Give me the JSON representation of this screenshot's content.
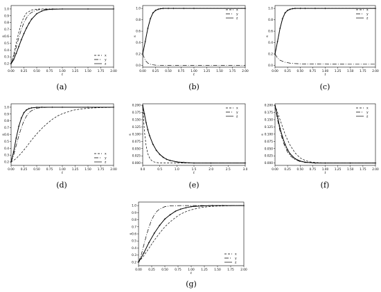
{
  "chart_data": [
    {
      "panel": "(a)",
      "type": "line",
      "xlabel": "t",
      "ylabel": "s",
      "xlim": [
        0,
        2.0
      ],
      "ylim": [
        0.15,
        1.05
      ],
      "xticks": [
        "0.00",
        "0.25",
        "0.50",
        "0.75",
        "1.00",
        "1.25",
        "1.50",
        "1.75",
        "2.00"
      ],
      "yticks": [
        "0.2",
        "0.3",
        "0.4",
        "0.5",
        "0.6",
        "0.7",
        "0.8",
        "0.9",
        "1.0"
      ],
      "legend": "bottom-right",
      "series": [
        {
          "name": "x",
          "style": "dashed",
          "x": [
            0,
            0.05,
            0.1,
            0.15,
            0.2,
            0.25,
            0.3,
            0.4,
            0.5,
            0.6,
            0.8,
            1.0,
            1.5,
            2.0
          ],
          "y": [
            0.2,
            0.33,
            0.5,
            0.66,
            0.79,
            0.88,
            0.94,
            0.985,
            0.997,
            1.0,
            1.0,
            1.0,
            1.0,
            1.0
          ]
        },
        {
          "name": "y",
          "style": "dashdot",
          "x": [
            0,
            0.05,
            0.1,
            0.15,
            0.2,
            0.25,
            0.3,
            0.35,
            0.4,
            0.5,
            0.6,
            0.8,
            1.0,
            1.5,
            2.0
          ],
          "y": [
            0.2,
            0.3,
            0.44,
            0.58,
            0.7,
            0.8,
            0.87,
            0.92,
            0.95,
            0.985,
            0.995,
            1.0,
            1.0,
            1.0,
            1.0
          ]
        },
        {
          "name": "z",
          "style": "solid-cross",
          "x": [
            0,
            0.05,
            0.1,
            0.15,
            0.2,
            0.25,
            0.3,
            0.35,
            0.4,
            0.5,
            0.6,
            0.7,
            0.8,
            1.0,
            1.5,
            2.0
          ],
          "y": [
            0.2,
            0.26,
            0.35,
            0.45,
            0.55,
            0.64,
            0.72,
            0.79,
            0.85,
            0.93,
            0.97,
            0.99,
            0.996,
            1.0,
            1.0,
            1.0
          ]
        }
      ]
    },
    {
      "panel": "(b)",
      "type": "line",
      "xlabel": "t",
      "ylabel": "s",
      "xlim": [
        0,
        2.0
      ],
      "ylim": [
        -0.03,
        1.05
      ],
      "xticks": [
        "0.00",
        "0.25",
        "0.50",
        "0.75",
        "1.00",
        "1.25",
        "1.50",
        "1.75",
        "2.00"
      ],
      "yticks": [
        "0.0",
        "0.2",
        "0.4",
        "0.6",
        "0.8",
        "1.0"
      ],
      "legend": "top-right",
      "series": [
        {
          "name": "x",
          "style": "dashed",
          "x": [
            0,
            0.05,
            0.1,
            0.15,
            0.2,
            0.25,
            0.3,
            0.35,
            0.4,
            0.5,
            0.6,
            0.8,
            1.0,
            2.0
          ],
          "y": [
            0.2,
            0.42,
            0.65,
            0.82,
            0.92,
            0.965,
            0.985,
            0.995,
            1.0,
            1.0,
            1.0,
            1.0,
            1.0,
            1.0
          ]
        },
        {
          "name": "y",
          "style": "dashdot",
          "x": [
            0,
            0.05,
            0.1,
            0.15,
            0.2,
            0.25,
            0.3,
            0.4,
            0.5,
            0.8,
            1.0,
            2.0
          ],
          "y": [
            0.2,
            0.09,
            0.04,
            0.02,
            0.01,
            0.005,
            0.002,
            0.0,
            0.0,
            0.0,
            0.0,
            0.0
          ]
        },
        {
          "name": "z",
          "style": "solid-cross",
          "x": [
            0,
            0.05,
            0.1,
            0.15,
            0.2,
            0.25,
            0.3,
            0.35,
            0.4,
            0.5,
            0.6,
            0.8,
            1.0,
            2.0
          ],
          "y": [
            0.2,
            0.42,
            0.65,
            0.82,
            0.92,
            0.965,
            0.985,
            0.995,
            1.0,
            1.0,
            1.0,
            1.0,
            1.0,
            1.0
          ]
        }
      ]
    },
    {
      "panel": "(c)",
      "type": "line",
      "xlabel": "t",
      "ylabel": "s",
      "xlim": [
        0,
        2.0
      ],
      "ylim": [
        -0.03,
        1.05
      ],
      "xticks": [
        "0.00",
        "0.25",
        "0.50",
        "0.75",
        "1.00",
        "1.25",
        "1.50",
        "1.75",
        "2.00"
      ],
      "yticks": [
        "0.0",
        "0.2",
        "0.4",
        "0.6",
        "0.8",
        "1.0"
      ],
      "legend": "top-right",
      "series": [
        {
          "name": "x",
          "style": "dashed",
          "x": [
            0,
            0.05,
            0.1,
            0.15,
            0.2,
            0.25,
            0.3,
            0.35,
            0.4,
            0.5,
            0.6,
            0.8,
            1.0,
            2.0
          ],
          "y": [
            0.2,
            0.42,
            0.65,
            0.82,
            0.92,
            0.965,
            0.985,
            0.995,
            1.0,
            1.0,
            1.0,
            1.0,
            1.0,
            1.0
          ]
        },
        {
          "name": "y",
          "style": "dashdot",
          "x": [
            0,
            0.05,
            0.1,
            0.2,
            0.3,
            0.4,
            0.5,
            0.6,
            0.8,
            1.0,
            1.5,
            2.0
          ],
          "y": [
            0.2,
            0.13,
            0.09,
            0.055,
            0.04,
            0.032,
            0.028,
            0.025,
            0.023,
            0.022,
            0.021,
            0.021
          ]
        },
        {
          "name": "z",
          "style": "solid-cross",
          "x": [
            0,
            0.05,
            0.1,
            0.15,
            0.2,
            0.25,
            0.3,
            0.35,
            0.4,
            0.5,
            0.6,
            0.8,
            1.0,
            2.0
          ],
          "y": [
            0.2,
            0.42,
            0.65,
            0.82,
            0.92,
            0.965,
            0.985,
            0.995,
            1.0,
            1.0,
            1.0,
            1.0,
            1.0,
            1.0
          ]
        }
      ]
    },
    {
      "panel": "(d)",
      "type": "line",
      "xlabel": "t",
      "ylabel": "s",
      "xlim": [
        0,
        2.0
      ],
      "ylim": [
        0.15,
        1.05
      ],
      "xticks": [
        "0.00",
        "0.25",
        "0.50",
        "0.75",
        "1.00",
        "1.25",
        "1.50",
        "1.75",
        "2.00"
      ],
      "yticks": [
        "0.2",
        "0.3",
        "0.4",
        "0.5",
        "0.6",
        "0.7",
        "0.8",
        "0.9",
        "1.0"
      ],
      "legend": "bottom-right",
      "series": [
        {
          "name": "x",
          "style": "dashed",
          "x": [
            0,
            0.1,
            0.2,
            0.3,
            0.4,
            0.5,
            0.6,
            0.7,
            0.8,
            0.9,
            1.0,
            1.2,
            1.4,
            1.6,
            1.8,
            2.0
          ],
          "y": [
            0.2,
            0.25,
            0.33,
            0.42,
            0.52,
            0.61,
            0.69,
            0.76,
            0.82,
            0.87,
            0.905,
            0.955,
            0.978,
            0.99,
            0.995,
            0.998
          ]
        },
        {
          "name": "y",
          "style": "dashdot",
          "x": [
            0,
            0.05,
            0.1,
            0.15,
            0.2,
            0.25,
            0.3,
            0.35,
            0.4,
            0.5,
            0.6,
            0.8,
            1.0,
            1.5,
            2.0
          ],
          "y": [
            0.2,
            0.3,
            0.44,
            0.58,
            0.7,
            0.8,
            0.87,
            0.92,
            0.95,
            0.985,
            0.995,
            1.0,
            1.0,
            1.0,
            1.0
          ]
        },
        {
          "name": "z",
          "style": "solid-cross",
          "x": [
            0,
            0.05,
            0.1,
            0.15,
            0.2,
            0.25,
            0.3,
            0.35,
            0.4,
            0.5,
            0.6,
            0.8,
            1.0,
            1.5,
            2.0
          ],
          "y": [
            0.2,
            0.35,
            0.55,
            0.72,
            0.84,
            0.92,
            0.96,
            0.98,
            0.99,
            0.998,
            1.0,
            1.0,
            1.0,
            1.0,
            1.0
          ]
        }
      ]
    },
    {
      "panel": "(e)",
      "type": "line",
      "xlabel": "t",
      "ylabel": "s",
      "xlim": [
        0,
        3.0
      ],
      "ylim": [
        -0.008,
        0.205
      ],
      "xticks": [
        "0.0",
        "0.5",
        "1.0",
        "1.5",
        "2.0",
        "2.5",
        "3.0"
      ],
      "yticks": [
        "0.000",
        "0.025",
        "0.050",
        "0.075",
        "0.100",
        "0.125",
        "0.150",
        "0.175",
        "0.200"
      ],
      "legend": "top-right",
      "series": [
        {
          "name": "x",
          "style": "dashed",
          "x": [
            0,
            0.05,
            0.1,
            0.15,
            0.2,
            0.25,
            0.3,
            0.4,
            0.5,
            0.7,
            1.0,
            2.0,
            3.0
          ],
          "y": [
            0.2,
            0.11,
            0.06,
            0.032,
            0.018,
            0.01,
            0.005,
            0.002,
            0.0,
            0.0,
            0.0,
            0.0,
            0.0
          ]
        },
        {
          "name": "y",
          "style": "dashdot",
          "x": [
            0,
            0.05,
            0.1,
            0.15,
            0.2,
            0.3,
            0.4,
            0.5,
            0.6,
            0.7,
            0.8,
            1.0,
            1.2,
            1.5,
            2.0,
            3.0
          ],
          "y": [
            0.2,
            0.17,
            0.14,
            0.115,
            0.095,
            0.065,
            0.044,
            0.03,
            0.02,
            0.013,
            0.009,
            0.004,
            0.002,
            0.0,
            0.0,
            0.0
          ]
        },
        {
          "name": "z",
          "style": "solid-cross",
          "x": [
            0,
            0.05,
            0.1,
            0.15,
            0.2,
            0.3,
            0.4,
            0.5,
            0.6,
            0.7,
            0.8,
            1.0,
            1.2,
            1.5,
            2.0,
            3.0
          ],
          "y": [
            0.2,
            0.17,
            0.14,
            0.115,
            0.095,
            0.065,
            0.044,
            0.03,
            0.02,
            0.013,
            0.009,
            0.004,
            0.002,
            0.0,
            0.0,
            0.0
          ]
        }
      ]
    },
    {
      "panel": "(f)",
      "type": "line",
      "xlabel": "t",
      "ylabel": "s",
      "xlim": [
        0,
        2.0
      ],
      "ylim": [
        -0.008,
        0.205
      ],
      "xticks": [
        "0.00",
        "0.25",
        "0.50",
        "0.75",
        "1.00",
        "1.25",
        "1.50",
        "1.75",
        "2.00"
      ],
      "yticks": [
        "0.000",
        "0.025",
        "0.050",
        "0.075",
        "0.100",
        "0.125",
        "0.150",
        "0.175",
        "0.200"
      ],
      "legend": "top-right",
      "series": [
        {
          "name": "x",
          "style": "dashed",
          "x": [
            0,
            0.05,
            0.1,
            0.15,
            0.2,
            0.25,
            0.3,
            0.4,
            0.5,
            0.6,
            0.7,
            0.8,
            1.0,
            1.5,
            2.0
          ],
          "y": [
            0.2,
            0.175,
            0.15,
            0.125,
            0.1,
            0.08,
            0.062,
            0.035,
            0.018,
            0.009,
            0.004,
            0.002,
            0.0,
            0.0,
            0.0
          ]
        },
        {
          "name": "y",
          "style": "dashdot",
          "x": [
            0,
            0.05,
            0.1,
            0.15,
            0.2,
            0.25,
            0.3,
            0.4,
            0.5,
            0.6,
            0.8,
            1.0,
            1.5,
            2.0
          ],
          "y": [
            0.2,
            0.15,
            0.11,
            0.08,
            0.055,
            0.038,
            0.026,
            0.012,
            0.005,
            0.002,
            0.0,
            0.0,
            0.0,
            0.0
          ]
        },
        {
          "name": "z",
          "style": "solid-cross",
          "x": [
            0,
            0.05,
            0.1,
            0.15,
            0.2,
            0.25,
            0.3,
            0.4,
            0.5,
            0.6,
            0.8,
            1.0,
            1.5,
            2.0
          ],
          "y": [
            0.2,
            0.16,
            0.12,
            0.09,
            0.065,
            0.046,
            0.032,
            0.015,
            0.007,
            0.003,
            0.0,
            0.0,
            0.0,
            0.0
          ]
        }
      ]
    },
    {
      "panel": "(g)",
      "type": "line",
      "xlabel": "t",
      "ylabel": "s",
      "xlim": [
        0,
        2.0
      ],
      "ylim": [
        0.15,
        1.05
      ],
      "xticks": [
        "0.00",
        "0.25",
        "0.50",
        "0.75",
        "1.00",
        "1.25",
        "1.50",
        "1.75",
        "2.00"
      ],
      "yticks": [
        "0.2",
        "0.3",
        "0.4",
        "0.5",
        "0.6",
        "0.7",
        "0.8",
        "0.9",
        "1.0"
      ],
      "legend": "bottom-right",
      "series": [
        {
          "name": "x",
          "style": "dashed",
          "x": [
            0,
            0.1,
            0.2,
            0.3,
            0.4,
            0.5,
            0.6,
            0.7,
            0.8,
            0.9,
            1.0,
            1.2,
            1.4,
            1.6,
            1.8,
            2.0
          ],
          "y": [
            0.2,
            0.29,
            0.4,
            0.51,
            0.61,
            0.7,
            0.77,
            0.83,
            0.88,
            0.915,
            0.94,
            0.975,
            0.99,
            0.996,
            0.999,
            1.0
          ]
        },
        {
          "name": "y",
          "style": "dashdot",
          "x": [
            0,
            0.05,
            0.1,
            0.15,
            0.2,
            0.25,
            0.3,
            0.35,
            0.4,
            0.5,
            0.6,
            0.8,
            1.0,
            1.5,
            2.0
          ],
          "y": [
            0.2,
            0.3,
            0.44,
            0.58,
            0.7,
            0.8,
            0.87,
            0.92,
            0.95,
            0.985,
            0.995,
            1.0,
            1.0,
            1.0,
            1.0
          ]
        },
        {
          "name": "z",
          "style": "solid-cross",
          "x": [
            0,
            0.1,
            0.2,
            0.3,
            0.4,
            0.5,
            0.6,
            0.7,
            0.8,
            0.9,
            1.0,
            1.2,
            1.4,
            1.6,
            2.0
          ],
          "y": [
            0.2,
            0.33,
            0.48,
            0.61,
            0.72,
            0.81,
            0.87,
            0.92,
            0.95,
            0.97,
            0.985,
            0.995,
            1.0,
            1.0,
            1.0
          ]
        }
      ]
    }
  ]
}
